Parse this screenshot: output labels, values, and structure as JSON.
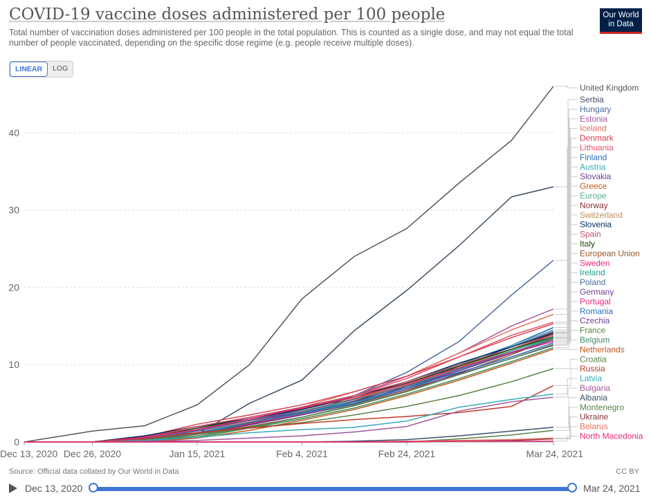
{
  "title": "COVID-19 vaccine doses administered per 100 people",
  "subtitle": "Total number of vaccination doses administered per 100 people in the total population. This is counted as a single dose, and may not equal the total number of people vaccinated, depending on the specific dose regime (e.g. people receive multiple doses).",
  "logo": {
    "line1": "Our World",
    "line2": "in Data"
  },
  "scale_toggle": {
    "linear": "LINEAR",
    "log": "LOG",
    "selected": "LINEAR"
  },
  "source": "Source: Official data collated by Our World in Data",
  "license": "CC BY",
  "timeline": {
    "start": "Dec 13, 2020",
    "end": "Mar 24, 2021"
  },
  "chart_data": {
    "type": "line",
    "xlabel": "",
    "ylabel": "",
    "ylim": [
      0,
      46
    ],
    "yticks": [
      0,
      10,
      20,
      30,
      40
    ],
    "xticks": [
      "Dec 13, 2020",
      "Dec 26, 2020",
      "Jan 15, 2021",
      "Feb 4, 2021",
      "Feb 24, 2021",
      "Mar 24, 2021"
    ],
    "grid": true,
    "legend": "right",
    "x": [
      "2020-12-13",
      "2020-12-26",
      "2021-01-05",
      "2021-01-15",
      "2021-01-25",
      "2021-02-04",
      "2021-02-14",
      "2021-02-24",
      "2021-03-06",
      "2021-03-16",
      "2021-03-24"
    ],
    "series": [
      {
        "name": "United Kingdom",
        "color": "#555555",
        "values": [
          0,
          1.4,
          2.1,
          4.8,
          10,
          18.5,
          24,
          27.6,
          33.5,
          39,
          46
        ]
      },
      {
        "name": "Serbia",
        "color": "#3c4e66",
        "values": [
          0,
          0,
          0.1,
          1,
          5,
          8,
          14.4,
          19.6,
          25.4,
          31.7,
          33
        ]
      },
      {
        "name": "Hungary",
        "color": "#4c6a9c",
        "values": [
          0,
          0,
          0.2,
          1,
          2.5,
          3.5,
          6,
          9,
          13,
          19,
          23.5
        ]
      },
      {
        "name": "Estonia",
        "color": "#a2559c",
        "values": [
          0,
          0,
          0.5,
          1.5,
          2.8,
          4.2,
          6,
          8.5,
          11.5,
          15,
          17.2
        ]
      },
      {
        "name": "Iceland",
        "color": "#e56e5a",
        "values": [
          0,
          0,
          0.8,
          2,
          3,
          4.5,
          6.5,
          8.5,
          11.5,
          14.5,
          16.5
        ]
      },
      {
        "name": "Denmark",
        "color": "#d73c50",
        "values": [
          0,
          0,
          0.7,
          2.3,
          3.5,
          4.8,
          6.5,
          8.5,
          11,
          13.5,
          15.3
        ]
      },
      {
        "name": "Lithuania",
        "color": "#e74c6b",
        "values": [
          0,
          0,
          0.6,
          1.8,
          3,
          4.3,
          6,
          8.2,
          11,
          13.8,
          15.5
        ]
      },
      {
        "name": "Finland",
        "color": "#286bbb",
        "values": [
          0,
          0,
          0.3,
          1,
          2.2,
          3.5,
          5.2,
          7.5,
          10,
          12.5,
          14.8
        ]
      },
      {
        "name": "Austria",
        "color": "#38aaba",
        "values": [
          0,
          0,
          0.2,
          1.2,
          2.4,
          3.7,
          5.5,
          7.5,
          10,
          12.5,
          14.5
        ]
      },
      {
        "name": "Slovakia",
        "color": "#6d3e91",
        "values": [
          0,
          0,
          0.3,
          1.4,
          2.6,
          3.6,
          5,
          7.2,
          9.8,
          12.3,
          14.3
        ]
      },
      {
        "name": "Greece",
        "color": "#c05917",
        "values": [
          0,
          0,
          0.4,
          1.6,
          2.8,
          4,
          5.6,
          7.6,
          9.8,
          12,
          14
        ]
      },
      {
        "name": "Europe",
        "color": "#58ac8c",
        "values": [
          0,
          0,
          0.3,
          1,
          2,
          3.2,
          4.8,
          6.8,
          9.2,
          11.5,
          13.5
        ]
      },
      {
        "name": "Norway",
        "color": "#883039",
        "values": [
          0,
          0,
          0.3,
          1.1,
          2.3,
          3.6,
          5.3,
          7.3,
          9.6,
          12,
          14
        ]
      },
      {
        "name": "Switzerland",
        "color": "#bc8e5a",
        "values": [
          0,
          0,
          0.5,
          1.5,
          2.6,
          3.9,
          5.5,
          7.4,
          9.6,
          12,
          14.2
        ]
      },
      {
        "name": "Slovenia",
        "color": "#00295b",
        "values": [
          0,
          0,
          0.8,
          2,
          3,
          4.2,
          5.8,
          7.8,
          10.2,
          12.3,
          14.1
        ]
      },
      {
        "name": "Spain",
        "color": "#c15065",
        "values": [
          0,
          0,
          0.6,
          2,
          3.2,
          4.5,
          6,
          7.8,
          10,
          12,
          13.8
        ]
      },
      {
        "name": "Italy",
        "color": "#18470f",
        "values": [
          0,
          0,
          0.5,
          1.8,
          3,
          4.4,
          5.8,
          7.6,
          9.8,
          12,
          13.6
        ]
      },
      {
        "name": "European Union",
        "color": "#9a5129",
        "values": [
          0,
          0,
          0.3,
          1,
          2,
          3.2,
          4.7,
          6.6,
          8.9,
          11.3,
          13.4
        ]
      },
      {
        "name": "Sweden",
        "color": "#e6287a",
        "values": [
          0,
          0,
          0.4,
          1.2,
          2.4,
          3.6,
          5,
          7,
          9.4,
          11.6,
          13.2
        ]
      },
      {
        "name": "Ireland",
        "color": "#1f9e8e",
        "values": [
          0,
          0,
          0.2,
          1,
          2.5,
          3.7,
          5,
          7,
          9.5,
          11.8,
          13.5
        ]
      },
      {
        "name": "Poland",
        "color": "#4c6a9c",
        "values": [
          0,
          0,
          0.3,
          1.5,
          2.8,
          4,
          5.5,
          7.2,
          9.4,
          11.6,
          13.2
        ]
      },
      {
        "name": "Germany",
        "color": "#6d3e91",
        "values": [
          0,
          0,
          0.5,
          1.6,
          2.8,
          3.8,
          5.2,
          7,
          9.2,
          11.5,
          13
        ]
      },
      {
        "name": "Portugal",
        "color": "#e6287a",
        "values": [
          0,
          0,
          0.6,
          1.6,
          3,
          4.4,
          5.8,
          7.5,
          9.6,
          11.6,
          13
        ]
      },
      {
        "name": "Romania",
        "color": "#286bbb",
        "values": [
          0,
          0,
          0.3,
          1.2,
          2.5,
          3.8,
          5.2,
          7,
          9,
          11,
          12.8
        ]
      },
      {
        "name": "Czechia",
        "color": "#6d3e91",
        "values": [
          0,
          0,
          0.3,
          1,
          2.2,
          3.5,
          4.9,
          6.8,
          8.8,
          10.8,
          12.5
        ]
      },
      {
        "name": "France",
        "color": "#578145",
        "values": [
          0,
          0,
          0.1,
          0.8,
          1.9,
          3.2,
          4.7,
          6.5,
          8.7,
          10.8,
          12.6
        ]
      },
      {
        "name": "Belgium",
        "color": "#3a8a5a",
        "values": [
          0,
          0,
          0.1,
          0.6,
          1.8,
          3,
          4.4,
          6.2,
          8.2,
          10.4,
          12.2
        ]
      },
      {
        "name": "Netherlands",
        "color": "#c15717",
        "values": [
          0,
          0,
          0,
          0.5,
          1.5,
          2.8,
          4.2,
          6,
          8,
          10.2,
          12
        ]
      },
      {
        "name": "Croatia",
        "color": "#578145",
        "values": [
          0,
          0,
          0.3,
          1,
          1.8,
          2.5,
          3.5,
          4.6,
          6,
          7.8,
          9.5
        ]
      },
      {
        "name": "Russia",
        "color": "#c0392b",
        "values": [
          0,
          0,
          0.4,
          1.2,
          1.8,
          2.4,
          2.9,
          3.3,
          3.8,
          4.6,
          7.3
        ]
      },
      {
        "name": "Latvia",
        "color": "#38aaba",
        "values": [
          0,
          0,
          0.2,
          0.6,
          1.2,
          1.6,
          1.9,
          2.7,
          4.5,
          5.5,
          6.2
        ]
      },
      {
        "name": "Bulgaria",
        "color": "#a2559c",
        "values": [
          0,
          0,
          0.1,
          0.2,
          0.5,
          0.8,
          1.3,
          2,
          4,
          5.2,
          5.8
        ]
      },
      {
        "name": "Albania",
        "color": "#3c4e66",
        "values": [
          0,
          0,
          0,
          0,
          0,
          0,
          0.1,
          0.3,
          0.8,
          1.4,
          1.9
        ]
      },
      {
        "name": "Montenegro",
        "color": "#578145",
        "values": [
          0,
          0,
          0,
          0,
          0,
          0,
          0,
          0,
          0.4,
          0.9,
          1.5
        ]
      },
      {
        "name": "Ukraine",
        "color": "#883039",
        "values": [
          0,
          0,
          0,
          0,
          0,
          0,
          0,
          0,
          0.1,
          0.2,
          0.4
        ]
      },
      {
        "name": "Belarus",
        "color": "#e56e5a",
        "values": [
          0,
          0,
          0,
          0,
          0,
          0,
          0,
          0.1,
          0.2,
          0.3,
          0.5
        ]
      },
      {
        "name": "North Macedonia",
        "color": "#e6287a",
        "values": [
          0,
          0,
          0,
          0,
          0,
          0,
          0,
          0.05,
          0.1,
          0.1,
          0.1
        ]
      }
    ]
  }
}
